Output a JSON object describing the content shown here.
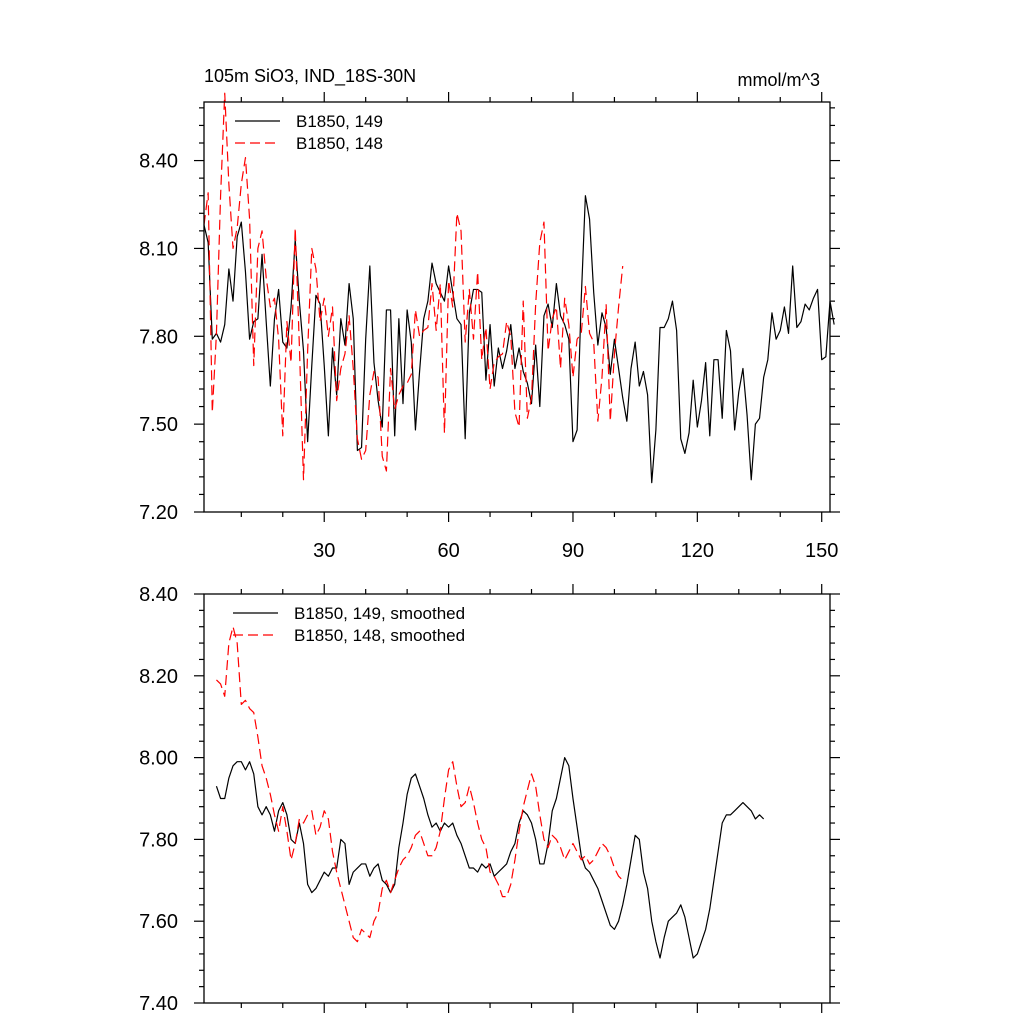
{
  "chart_data": [
    {
      "type": "line",
      "title": "105m SiO3, IND_18S-30N",
      "units": "mmol/m^3",
      "xlim": [
        1,
        152
      ],
      "ylim": [
        7.2,
        8.6
      ],
      "xticks": [
        30,
        60,
        90,
        120,
        150
      ],
      "yticks": [
        7.2,
        7.5,
        7.8,
        8.1,
        8.4
      ],
      "yticklabels": [
        "7.20",
        "7.50",
        "7.80",
        "8.10",
        "8.40"
      ],
      "grid": false,
      "legend_position": "top-left",
      "series": [
        {
          "name": "B1850, 149",
          "color": "#000000",
          "dash": "solid",
          "x_start": 1,
          "values": [
            8.18,
            8.12,
            7.79,
            7.81,
            7.78,
            7.84,
            8.03,
            7.92,
            8.14,
            8.19,
            8.02,
            7.79,
            7.85,
            7.86,
            8.08,
            7.85,
            7.63,
            7.86,
            7.96,
            7.78,
            7.76,
            7.9,
            8.13,
            7.92,
            7.75,
            7.44,
            7.7,
            7.94,
            7.91,
            7.7,
            7.46,
            7.76,
            7.6,
            7.86,
            7.77,
            7.98,
            7.86,
            7.41,
            7.42,
            7.79,
            8.04,
            7.71,
            7.58,
            7.49,
            7.89,
            7.89,
            7.46,
            7.86,
            7.57,
            7.89,
            7.78,
            7.48,
            7.68,
            7.86,
            7.92,
            8.05,
            7.98,
            7.95,
            7.92,
            8.04,
            7.95,
            7.86,
            7.84,
            7.45,
            7.88,
            7.96,
            7.96,
            7.95,
            7.65,
            7.84,
            7.63,
            7.76,
            7.69,
            7.75,
            7.84,
            7.69,
            7.76,
            7.68,
            7.64,
            7.57,
            7.77,
            7.56,
            7.87,
            7.91,
            7.83,
            7.98,
            7.87,
            7.84,
            7.79,
            7.44,
            7.48,
            7.93,
            8.28,
            8.2,
            7.95,
            7.77,
            7.88,
            7.83,
            7.67,
            7.79,
            7.69,
            7.59,
            7.51,
            7.69,
            7.78,
            7.63,
            7.68,
            7.6,
            7.3,
            7.48,
            7.83,
            7.83,
            7.86,
            7.92,
            7.82,
            7.45,
            7.4,
            7.47,
            7.65,
            7.49,
            7.58,
            7.71,
            7.46,
            7.72,
            7.72,
            7.52,
            7.82,
            7.75,
            7.48,
            7.61,
            7.69,
            7.53,
            7.31,
            7.5,
            7.52,
            7.66,
            7.72,
            7.88,
            7.79,
            7.82,
            7.9,
            7.81,
            8.04,
            7.83,
            7.85,
            7.91,
            7.89,
            7.93,
            7.96,
            7.72,
            7.73,
            7.92,
            7.84
          ]
        },
        {
          "name": "B1850, 148",
          "color": "#ff0000",
          "dash": "dashed",
          "x_start": 1,
          "values": [
            8.18,
            8.29,
            7.54,
            7.81,
            8.28,
            8.63,
            8.32,
            8.1,
            8.17,
            8.32,
            8.41,
            8.2,
            7.7,
            8.1,
            8.16,
            8.0,
            7.9,
            7.93,
            7.79,
            7.46,
            7.85,
            7.71,
            8.17,
            7.77,
            7.31,
            7.75,
            8.1,
            8.03,
            7.85,
            7.93,
            7.8,
            7.9,
            7.58,
            7.69,
            7.74,
            7.87,
            7.69,
            7.45,
            7.38,
            7.41,
            7.6,
            7.68,
            7.66,
            7.39,
            7.34,
            7.69,
            7.55,
            7.6,
            7.63,
            7.64,
            7.67,
            7.89,
            7.8,
            7.82,
            7.83,
            7.98,
            7.82,
            7.98,
            7.47,
            7.99,
            7.9,
            8.22,
            8.16,
            7.78,
            7.96,
            7.79,
            8.02,
            7.72,
            7.83,
            7.62,
            7.71,
            7.73,
            7.74,
            7.85,
            7.8,
            7.54,
            7.49,
            7.92,
            7.52,
            7.59,
            7.91,
            8.12,
            8.19,
            7.75,
            7.86,
            7.9,
            7.69,
            7.93,
            7.84,
            7.66,
            7.79,
            7.81,
            7.97,
            7.81,
            7.78,
            7.51,
            7.66,
            7.91,
            7.51,
            7.74,
            7.9,
            8.04
          ]
        }
      ]
    },
    {
      "type": "line",
      "xlim": [
        1,
        152
      ],
      "ylim": [
        7.4,
        8.4
      ],
      "xticks": [
        30,
        60,
        90,
        120,
        150
      ],
      "yticks": [
        7.4,
        7.6,
        7.8,
        8.0,
        8.2,
        8.4
      ],
      "yticklabels": [
        "7.40",
        "7.60",
        "7.80",
        "8.00",
        "8.20",
        "8.40"
      ],
      "grid": false,
      "legend_position": "top-left",
      "series": [
        {
          "name": "B1850, 149, smoothed",
          "color": "#000000",
          "dash": "solid",
          "x_start": 4,
          "values": [
            7.93,
            7.9,
            7.9,
            7.95,
            7.98,
            7.99,
            7.99,
            7.97,
            7.99,
            7.96,
            7.88,
            7.86,
            7.88,
            7.86,
            7.82,
            7.87,
            7.89,
            7.86,
            7.8,
            7.79,
            7.84,
            7.79,
            7.69,
            7.67,
            7.68,
            7.7,
            7.72,
            7.71,
            7.73,
            7.73,
            7.8,
            7.79,
            7.69,
            7.72,
            7.73,
            7.74,
            7.74,
            7.71,
            7.73,
            7.74,
            7.7,
            7.69,
            7.67,
            7.69,
            7.78,
            7.84,
            7.91,
            7.95,
            7.96,
            7.93,
            7.9,
            7.86,
            7.83,
            7.84,
            7.82,
            7.84,
            7.83,
            7.84,
            7.81,
            7.79,
            7.76,
            7.73,
            7.73,
            7.72,
            7.74,
            7.73,
            7.74,
            7.71,
            7.72,
            7.73,
            7.74,
            7.77,
            7.79,
            7.84,
            7.87,
            7.86,
            7.84,
            7.8,
            7.74,
            7.74,
            7.79,
            7.87,
            7.9,
            7.95,
            8.0,
            7.98,
            7.9,
            7.83,
            7.76,
            7.73,
            7.72,
            7.7,
            7.68,
            7.65,
            7.62,
            7.59,
            7.58,
            7.6,
            7.64,
            7.69,
            7.75,
            7.81,
            7.8,
            7.72,
            7.68,
            7.6,
            7.55,
            7.51,
            7.56,
            7.6,
            7.61,
            7.62,
            7.64,
            7.61,
            7.56,
            7.51,
            7.52,
            7.55,
            7.58,
            7.63,
            7.7,
            7.77,
            7.84,
            7.86,
            7.86,
            7.87,
            7.88,
            7.89,
            7.88,
            7.87,
            7.85,
            7.86,
            7.85
          ]
        },
        {
          "name": "B1850, 148, smoothed",
          "color": "#ff0000",
          "dash": "dashed",
          "x_start": 4,
          "values": [
            8.19,
            8.18,
            8.15,
            8.28,
            8.32,
            8.28,
            8.13,
            8.14,
            8.12,
            8.11,
            8.05,
            7.98,
            7.95,
            7.91,
            7.86,
            7.82,
            7.88,
            7.82,
            7.75,
            7.79,
            7.85,
            7.84,
            7.86,
            7.87,
            7.81,
            7.83,
            7.87,
            7.85,
            7.77,
            7.72,
            7.68,
            7.64,
            7.6,
            7.56,
            7.55,
            7.58,
            7.57,
            7.56,
            7.6,
            7.62,
            7.68,
            7.7,
            7.67,
            7.7,
            7.73,
            7.75,
            7.76,
            7.78,
            7.81,
            7.82,
            7.79,
            7.76,
            7.76,
            7.78,
            7.82,
            7.9,
            7.97,
            7.99,
            7.93,
            7.88,
            7.89,
            7.93,
            7.89,
            7.84,
            7.8,
            7.78,
            7.72,
            7.71,
            7.69,
            7.66,
            7.66,
            7.69,
            7.75,
            7.82,
            7.88,
            7.92,
            7.96,
            7.93,
            7.86,
            7.8,
            7.78,
            7.81,
            7.8,
            7.78,
            7.75,
            7.77,
            7.79,
            7.77,
            7.75,
            7.76,
            7.74,
            7.75,
            7.77,
            7.79,
            7.78,
            7.76,
            7.73,
            7.71,
            7.7
          ]
        }
      ]
    }
  ]
}
